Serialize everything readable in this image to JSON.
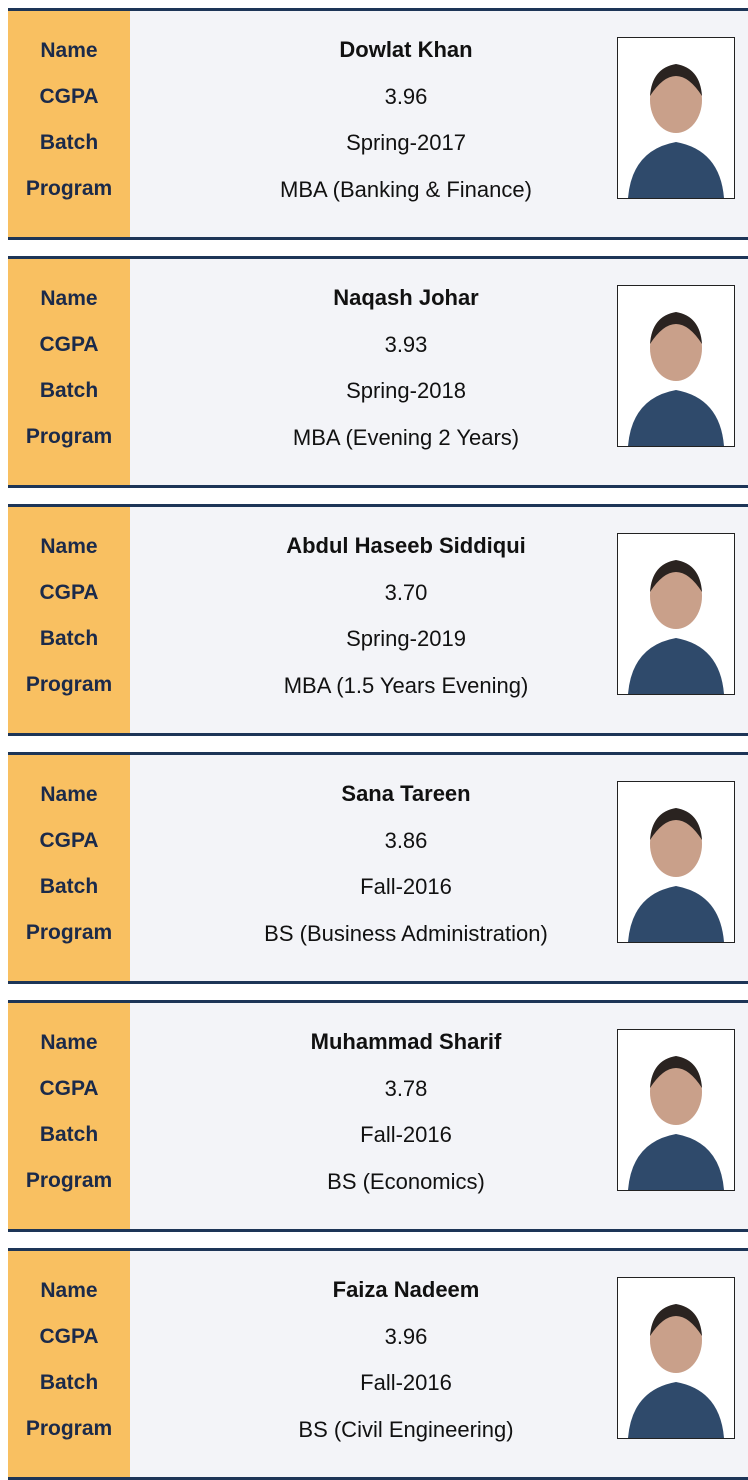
{
  "field_labels": [
    "Name",
    "CGPA",
    "Batch",
    "Program"
  ],
  "cards": [
    {
      "name": "Dowlat Khan",
      "cgpa": "3.96",
      "batch": "Spring-2017",
      "program": "MBA (Banking & Finance)"
    },
    {
      "name": "Naqash Johar",
      "cgpa": "3.93",
      "batch": "Spring-2018",
      "program": "MBA (Evening 2 Years)"
    },
    {
      "name": "Abdul Haseeb Siddiqui",
      "cgpa": "3.70",
      "batch": "Spring-2019",
      "program": "MBA (1.5 Years Evening)"
    },
    {
      "name": "Sana Tareen",
      "cgpa": "3.86",
      "batch": "Fall-2016",
      "program": "BS (Business Administration)"
    },
    {
      "name": "Muhammad Sharif",
      "cgpa": "3.78",
      "batch": "Fall-2016",
      "program": "BS (Economics)"
    },
    {
      "name": "Faiza Nadeem",
      "cgpa": "3.96",
      "batch": "Fall-2016",
      "program": "BS (Civil Engineering)"
    }
  ]
}
